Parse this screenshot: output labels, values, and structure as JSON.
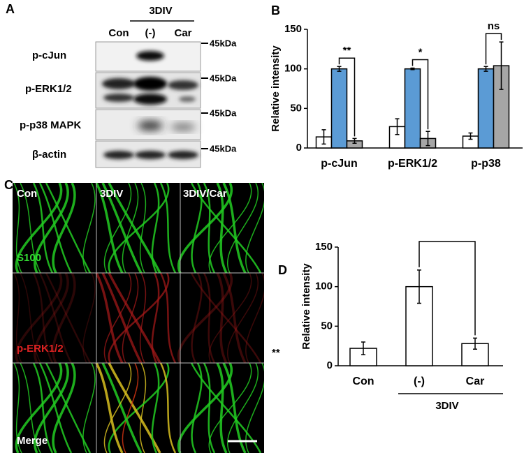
{
  "panel_labels": [
    "A",
    "B",
    "C",
    "D"
  ],
  "blot": {
    "group_label": "3DIV",
    "lanes": [
      "Con",
      "(-)",
      "Car"
    ],
    "rows": [
      "p-cJun",
      "p-ERK1/2",
      "p-p38 MAPK",
      "β-actin"
    ],
    "markers": [
      "45kDa",
      "45kDa",
      "45kDa",
      "45kDa"
    ]
  },
  "chart_data": [
    {
      "type": "bar",
      "ylabel": "Relative intensity",
      "categories": [
        "p-cJun",
        "p-ERK1/2",
        "p-p38"
      ],
      "series": [
        {
          "color": "#ffffff",
          "values": [
            14,
            27,
            15
          ],
          "errors": [
            9,
            10,
            4
          ]
        },
        {
          "color": "#5b9bd5",
          "values": [
            100,
            100,
            100
          ],
          "errors": [
            3,
            1,
            3
          ]
        },
        {
          "color": "#a6a6a6",
          "values": [
            9,
            12,
            104
          ],
          "errors": [
            3,
            9,
            30
          ]
        }
      ],
      "ylim": [
        0,
        150
      ],
      "yticks": [
        0,
        50,
        100,
        150
      ],
      "annotations": [
        "**",
        "*",
        "ns"
      ]
    },
    {
      "type": "bar",
      "ylabel": "Relative intensity",
      "categories": [
        "Con",
        "(-)",
        "Car"
      ],
      "values": [
        22,
        100,
        28
      ],
      "errors": [
        8,
        21,
        7
      ],
      "color": "#ffffff",
      "ylim": [
        0,
        150
      ],
      "yticks": [
        0,
        50,
        100,
        150
      ],
      "group_label": "3DIV",
      "annotation": "**"
    }
  ],
  "microscopy": {
    "columns": [
      "Con",
      "3DIV",
      "3DIV/Car"
    ],
    "rows": [
      "S100",
      "p-ERK1/2",
      "Merge"
    ]
  }
}
